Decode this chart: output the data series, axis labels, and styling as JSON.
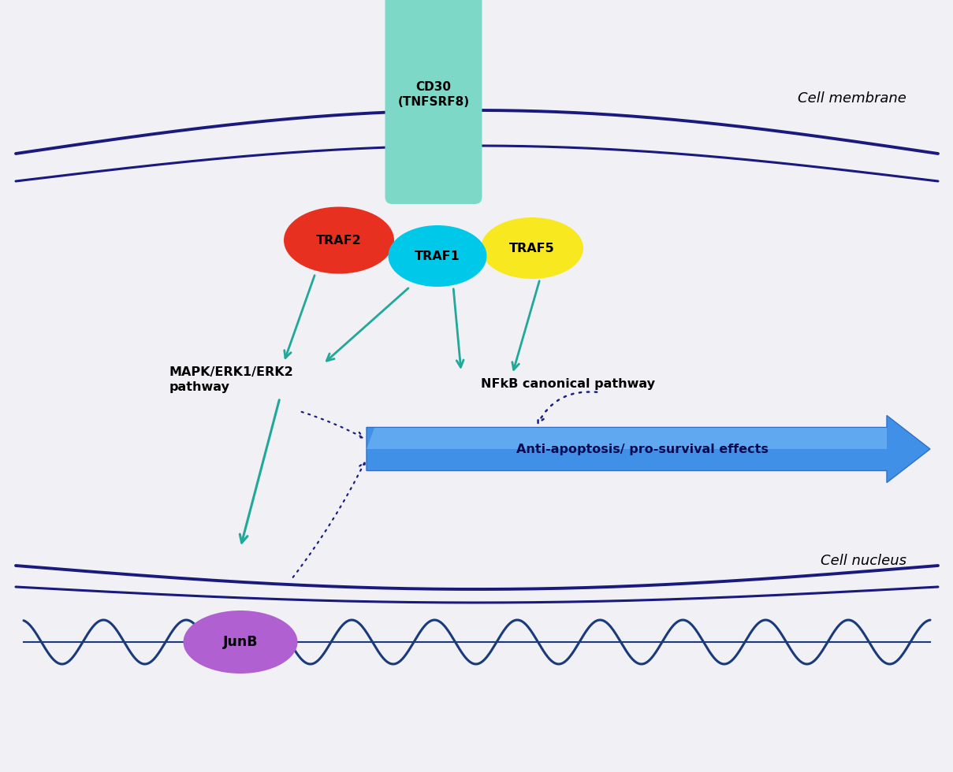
{
  "bg_color": "#f0f0f5",
  "membrane_color": "#1a1a7e",
  "cd30_color": "#7dd8c8",
  "cd30_text": "CD30\n(TNFSRF8)",
  "traf1_color": "#00c8e8",
  "traf2_color": "#e83020",
  "traf5_color": "#f8e820",
  "junb_color": "#b060d0",
  "arrow_color": "#20a898",
  "dashed_color": "#2040a0",
  "anti_apoptosis_color_start": "#60a8f8",
  "anti_apoptosis_color_end": "#2060d8",
  "anti_apoptosis_text": "Anti-apoptosis/ pro-survival effects",
  "mapk_text": "MAPK/ERK1/ERK2\npathway",
  "nfkb_text": "NFkB canonical pathway",
  "cell_membrane_text": "Cell membrane",
  "cell_nucleus_text": "Cell nucleus",
  "junb_text": "JunB"
}
